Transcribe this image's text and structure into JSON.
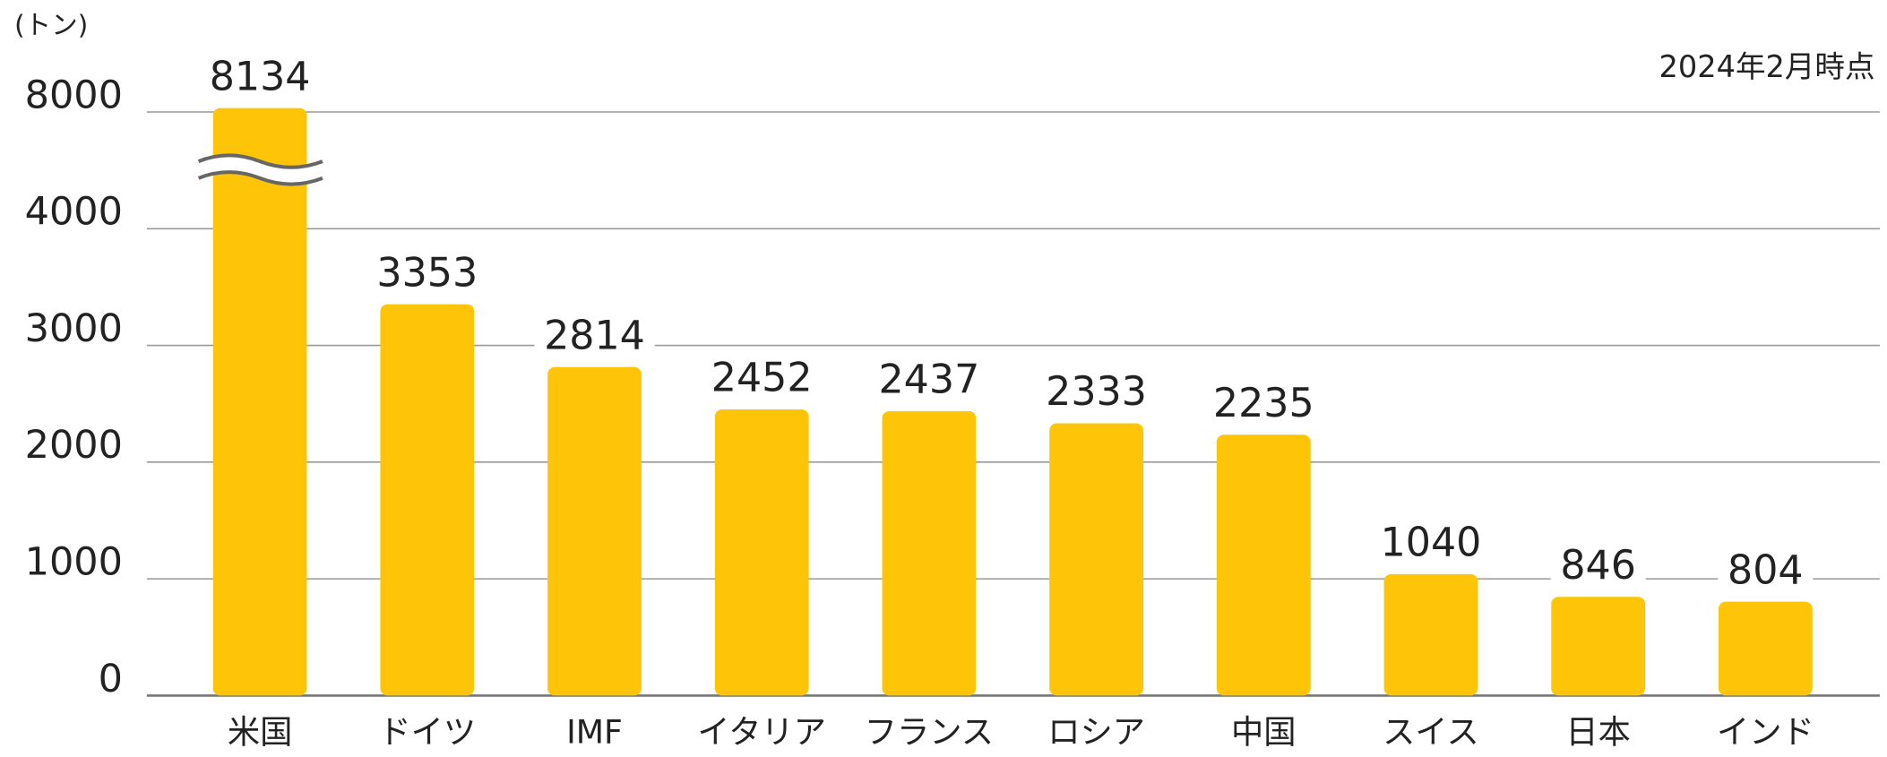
{
  "chart_data": {
    "type": "bar",
    "y_axis_label": "(トン)",
    "annotation": "2024年2月時点",
    "categories": [
      "米国",
      "ドイツ",
      "IMF",
      "イタリア",
      "フランス",
      "ロシア",
      "中国",
      "スイス",
      "日本",
      "インド"
    ],
    "values": [
      8134,
      3353,
      2814,
      2452,
      2437,
      2333,
      2235,
      1040,
      846,
      804
    ],
    "color": "#fdc408",
    "yticks": [
      0,
      1000,
      2000,
      3000,
      4000,
      8000
    ],
    "ylim": [
      0,
      8000
    ],
    "axis_break": [
      4000,
      8000
    ],
    "grid": true
  }
}
